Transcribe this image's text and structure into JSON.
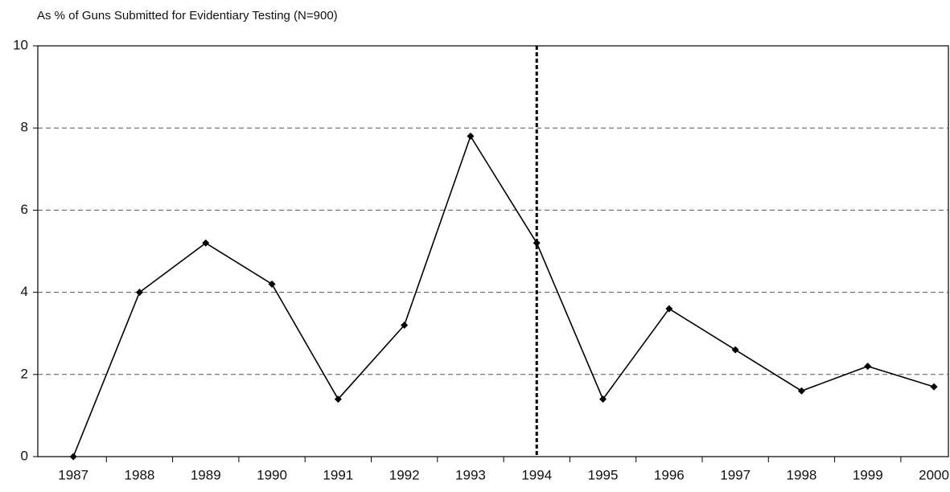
{
  "chart_data": {
    "type": "line",
    "title": "As % of Guns Submitted for Evidentiary Testing (N=900)",
    "categories": [
      "1987",
      "1988",
      "1989",
      "1990",
      "1991",
      "1992",
      "1993",
      "1994",
      "1995",
      "1996",
      "1997",
      "1998",
      "1999",
      "2000"
    ],
    "values": [
      0,
      4.0,
      5.2,
      4.2,
      1.4,
      3.2,
      7.8,
      5.2,
      1.4,
      3.6,
      2.6,
      1.6,
      2.2,
      1.7
    ],
    "color": "#000000",
    "ylim": [
      0,
      10
    ],
    "yticks": [
      0,
      2,
      4,
      6,
      8,
      10
    ],
    "grid": true,
    "vline": "1994"
  }
}
